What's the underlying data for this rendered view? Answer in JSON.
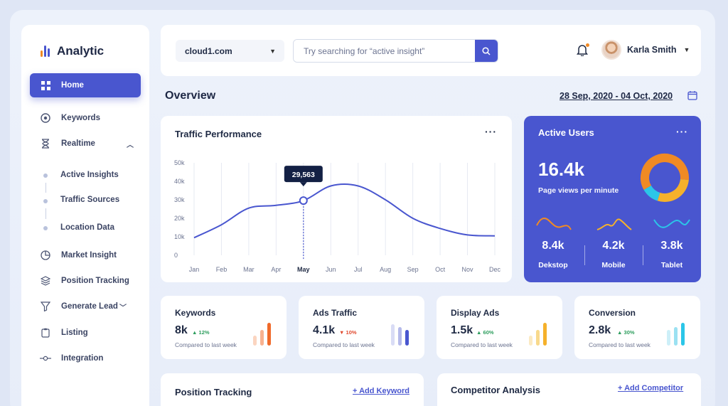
{
  "app": {
    "name": "Analytic",
    "logo_colors": [
      "#f08a24",
      "#4956cf",
      "#4956cf"
    ]
  },
  "sidebar": {
    "items": [
      {
        "label": "Home",
        "icon": "grid-icon"
      },
      {
        "label": "Keywords",
        "icon": "target-icon"
      },
      {
        "label": "Realtime",
        "icon": "hourglass-icon"
      },
      {
        "label": "Market Insight",
        "icon": "pie-chart-icon"
      },
      {
        "label": "Position Tracking",
        "icon": "layers-icon"
      },
      {
        "label": "Generate Lead",
        "icon": "funnel-icon"
      },
      {
        "label": "Listing",
        "icon": "clipboard-icon"
      },
      {
        "label": "Integration",
        "icon": "node-link-icon"
      }
    ],
    "realtime_sub": [
      "Active Insights",
      "Traffic Sources",
      "Location Data"
    ]
  },
  "topbar": {
    "domain": "cloud1.com",
    "search_placeholder": "Try searching for “active insight”",
    "user_name": "Karla Smith"
  },
  "overview": {
    "title": "Overview",
    "date_range": "28 Sep, 2020 - 04 Oct, 2020"
  },
  "traffic": {
    "title": "Traffic Performance",
    "tooltip": "29,563",
    "highlight_month": "May"
  },
  "chart_data": {
    "type": "line",
    "title": "Traffic Performance",
    "categories": [
      "Jan",
      "Feb",
      "Mar",
      "Apr",
      "May",
      "Jun",
      "Jul",
      "Aug",
      "Sep",
      "Oct",
      "Nov",
      "Dec"
    ],
    "values": [
      9500,
      16500,
      25500,
      27000,
      29563,
      37500,
      37500,
      30000,
      20000,
      14500,
      11000,
      10500
    ],
    "yticks": [
      "0",
      "10k",
      "20k",
      "30k",
      "40k",
      "50k"
    ],
    "ylim": [
      0,
      50000
    ],
    "grid": "vertical",
    "line_color": "#4956cf"
  },
  "active_users": {
    "title": "Active Users",
    "value": "16.4k",
    "subtitle": "Page views per minute",
    "devices": [
      {
        "value": "8.4k",
        "label": "Dekstop",
        "color": "#f08a24"
      },
      {
        "value": "4.2k",
        "label": "Mobile",
        "color": "#f5b12b"
      },
      {
        "value": "3.8k",
        "label": "Tablet",
        "color": "#2bc6e8"
      }
    ],
    "donut_colors": [
      "#f08a24",
      "#f5b12b",
      "#2bc6e8"
    ]
  },
  "stats": [
    {
      "name": "Keywords",
      "value": "8k",
      "change": "12%",
      "dir": "up",
      "compare": "Compared to last week",
      "bar_colors": [
        "#fbd5c0",
        "#f8b290",
        "#f06a2a"
      ]
    },
    {
      "name": "Ads Traffic",
      "value": "4.1k",
      "change": "10%",
      "dir": "down",
      "compare": "Compared to last week",
      "bar_colors": [
        "#d9dcf5",
        "#b4b9ea",
        "#4956cf"
      ]
    },
    {
      "name": "Display Ads",
      "value": "1.5k",
      "change": "60%",
      "dir": "up",
      "compare": "Compared to last week",
      "bar_colors": [
        "#fbeac3",
        "#f8d98c",
        "#f5b12b"
      ]
    },
    {
      "name": "Conversion",
      "value": "2.8k",
      "change": "30%",
      "dir": "up",
      "compare": "Compared to last week",
      "bar_colors": [
        "#cdeff8",
        "#9be1f2",
        "#2bc6e8"
      ]
    }
  ],
  "bottom": [
    {
      "title": "Position Tracking",
      "link": "+ Add Keyword"
    },
    {
      "title": "Competitor Analysis",
      "link": "+ Add Competitor"
    }
  ],
  "colors": {
    "accent": "#4956cf",
    "up": "#2e9e5e",
    "down": "#e04a2f"
  }
}
